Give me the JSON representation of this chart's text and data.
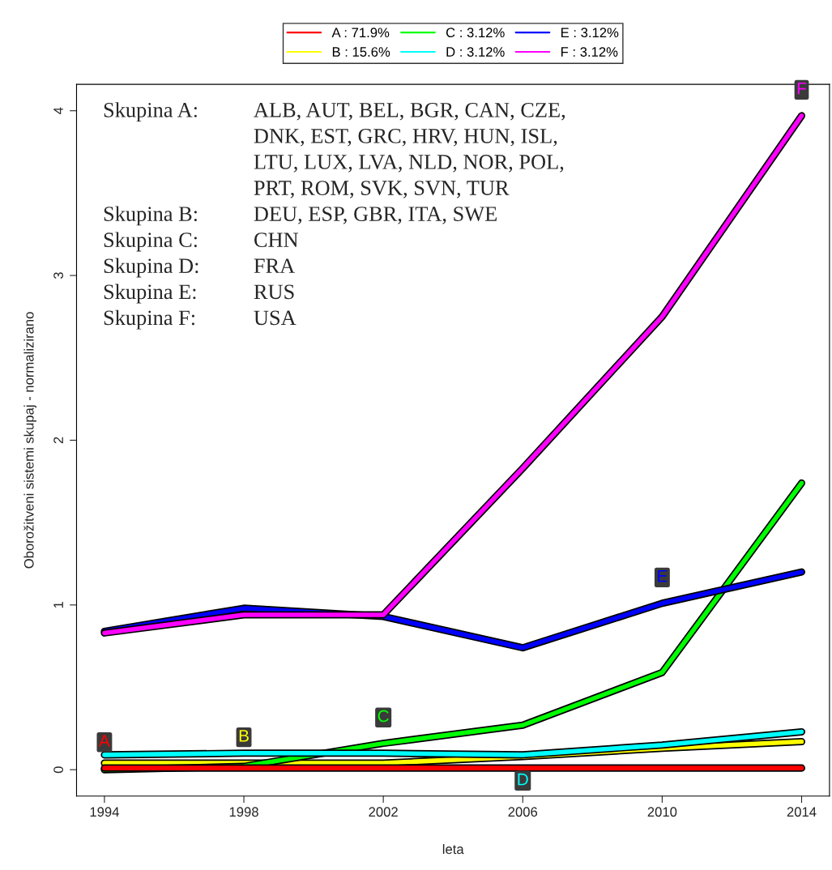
{
  "chart_data": {
    "type": "line",
    "xlabel": "leta",
    "ylabel": "Oborožitveni sistemi skupaj - normalizirano",
    "x": [
      1994,
      1998,
      2002,
      2006,
      2010,
      2014
    ],
    "series": [
      {
        "name": "A : 71.9%",
        "color": "#ff0000",
        "values": [
          0.01,
          0.01,
          0.01,
          0.01,
          0.01,
          0.01
        ]
      },
      {
        "name": "B : 15.6%",
        "color": "#ffff00",
        "values": [
          0.04,
          0.04,
          0.04,
          0.08,
          0.13,
          0.17
        ]
      },
      {
        "name": "C : 3.12%",
        "color": "#00ff00",
        "values": [
          0.0,
          0.02,
          0.16,
          0.27,
          0.59,
          1.74
        ]
      },
      {
        "name": "D : 3.12%",
        "color": "#00ffff",
        "values": [
          0.09,
          0.1,
          0.1,
          0.09,
          0.15,
          0.23
        ]
      },
      {
        "name": "E : 3.12%",
        "color": "#0000ff",
        "values": [
          0.84,
          0.98,
          0.93,
          0.74,
          1.01,
          1.2
        ]
      },
      {
        "name": "F : 3.12%",
        "color": "#ff00ff",
        "values": [
          0.83,
          0.94,
          0.94,
          1.83,
          2.75,
          3.97
        ]
      }
    ],
    "annotations": [
      {
        "text": "A",
        "x": 1994,
        "y": 0.01
      },
      {
        "text": "B",
        "x": 1998,
        "y": 0.04
      },
      {
        "text": "C",
        "x": 2002,
        "y": 0.16
      },
      {
        "text": "D",
        "x": 2006,
        "y": 0.09
      },
      {
        "text": "E",
        "x": 2010,
        "y": 1.01
      },
      {
        "text": "F",
        "x": 2014,
        "y": 3.97
      },
      "Skupina A: ALB, AUT, BEL, BGR, CAN, CZE, DNK, EST, GRC, HRV, HUN, ISL, LTU, LUX, LVA, NLD, NOR, POL, PRT, ROM, SVK, SVN, TUR",
      "Skupina B: DEU, ESP, GBR, ITA, SWE",
      "Skupina C: CHN",
      "Skupina D: FRA",
      "Skupina E: RUS",
      "Skupina F: USA"
    ],
    "xlim": [
      1993.2,
      2014.8
    ],
    "ylim": [
      -0.16,
      4.16
    ],
    "xticks": [
      1994,
      1998,
      2002,
      2006,
      2010,
      2014
    ],
    "yticks": [
      0,
      1,
      2,
      3,
      4
    ],
    "grid": false,
    "legend": "top",
    "marker": "none",
    "line_style": "solid"
  }
}
